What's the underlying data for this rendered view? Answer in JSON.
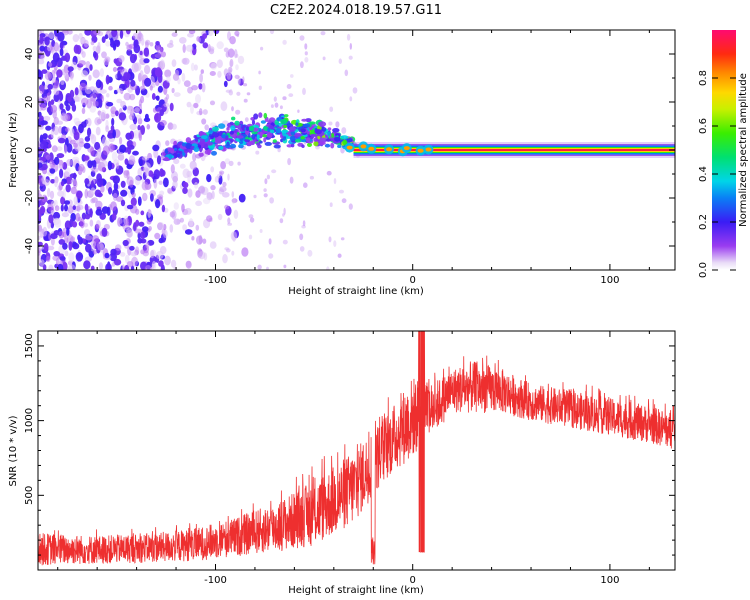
{
  "title": "C2E2.2024.018.19.57.G11",
  "chart_data": [
    {
      "type": "heatmap",
      "xlabel": "Height of straight line (km)",
      "ylabel": "Frequency (Hz)",
      "xlim": [
        -190,
        133
      ],
      "ylim": [
        -50,
        50
      ],
      "x_ticks": [
        -100,
        0,
        100
      ],
      "y_ticks": [
        -40,
        -20,
        0,
        20,
        40
      ],
      "colorbar": {
        "label": "Normalized spectral amplitude",
        "range": [
          0,
          1
        ],
        "ticks": [
          "0.0",
          "0.2",
          "0.4",
          "0.6",
          "0.8"
        ]
      },
      "features": {
        "noise_region_x": [
          -190,
          -100
        ],
        "scatter_band": {
          "x": [
            -125,
            -30
          ],
          "freq_trend": [
            -2,
            8
          ]
        },
        "carrier_line": {
          "x_start": -30,
          "freq": 0,
          "peak_amplitude": 0.95
        }
      }
    },
    {
      "type": "line",
      "xlabel": "Height of straight line (km)",
      "ylabel": "SNR (10 * v/v)",
      "xlim": [
        -190,
        133
      ],
      "ylim": [
        0,
        1600
      ],
      "x_ticks": [
        -100,
        0,
        100
      ],
      "y_ticks": [
        500,
        1000,
        1500
      ],
      "series": [
        {
          "color": "#ee2f2f",
          "envelope": {
            "x": [
              -190,
              -160,
              -130,
              -110,
              -90,
              -70,
              -50,
              -30,
              -20,
              -10,
              0,
              10,
              20,
              30,
              45,
              60,
              80,
              100,
              120,
              133
            ],
            "low": [
              30,
              40,
              50,
              60,
              90,
              120,
              160,
              300,
              500,
              650,
              750,
              900,
              1050,
              1050,
              1050,
              1000,
              950,
              900,
              850,
              800
            ],
            "high": [
              250,
              230,
              250,
              280,
              350,
              450,
              600,
              800,
              950,
              1100,
              1300,
              1250,
              1350,
              1400,
              1350,
              1250,
              1200,
              1150,
              1100,
              1050
            ]
          }
        }
      ]
    }
  ]
}
